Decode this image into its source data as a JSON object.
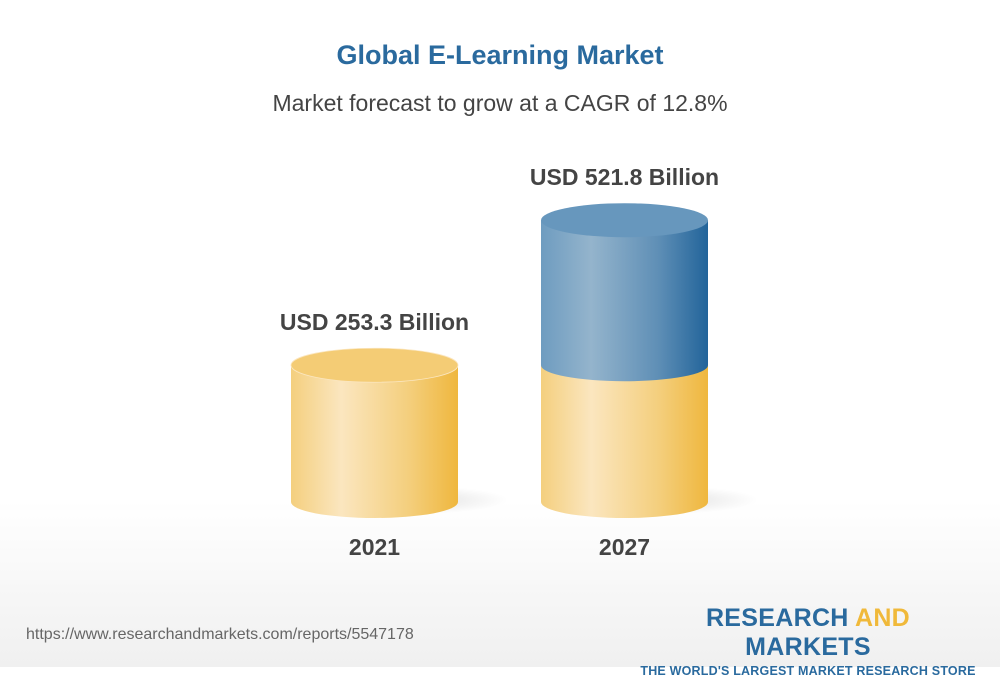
{
  "chart_data": {
    "type": "bar",
    "style": "3d-cylinder",
    "title": "Global E-Learning Market",
    "subtitle": "Market forecast to grow at a CAGR of 12.8%",
    "categories": [
      "2021",
      "2027"
    ],
    "values": [
      253.3,
      521.8
    ],
    "data_labels": [
      "USD 253.3 Billion",
      "USD 521.8 Billion"
    ],
    "unit": "USD Billion",
    "colors": {
      "base": "#f2c462",
      "growth": "#2a6a9e"
    }
  },
  "footer": {
    "url": "https://www.researchandmarkets.com/reports/5547178",
    "logo_part1": "RESEARCH ",
    "logo_part2": "AND",
    "logo_part3": " MARKETS",
    "tagline": "THE WORLD'S LARGEST MARKET RESEARCH STORE"
  }
}
